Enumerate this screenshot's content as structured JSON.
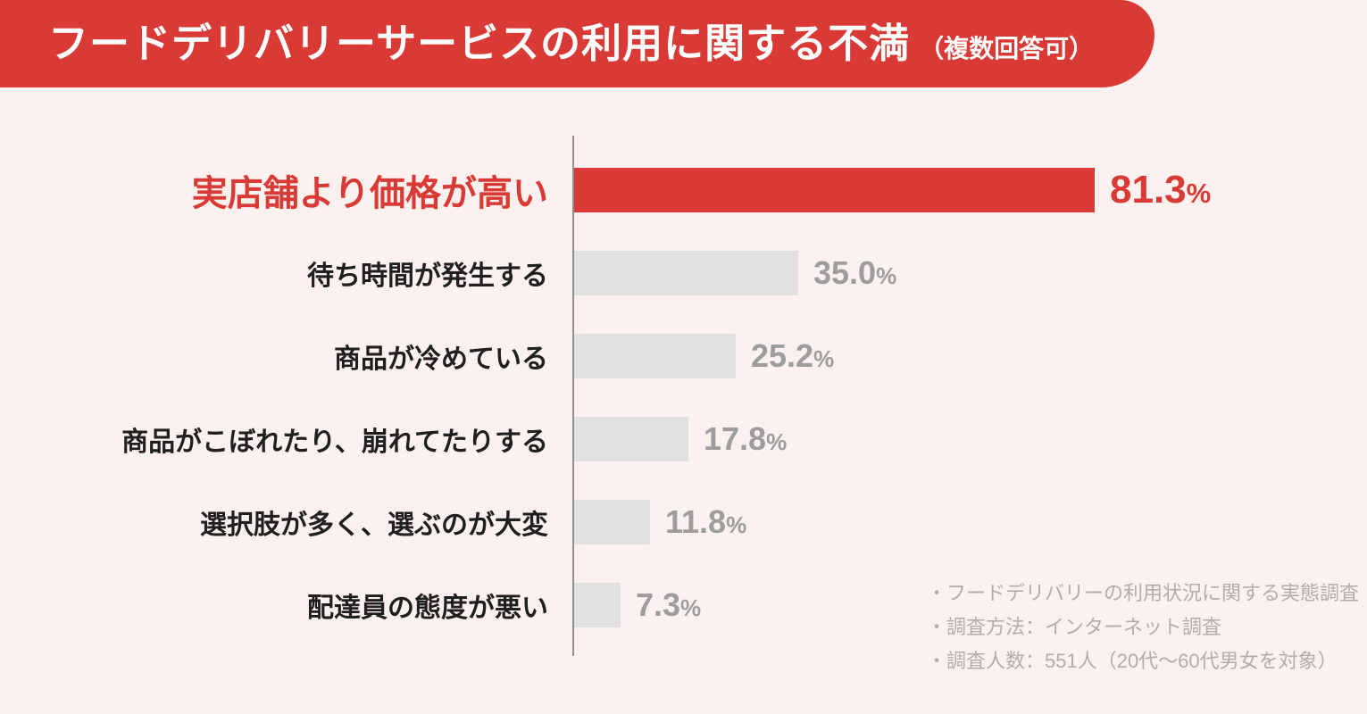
{
  "header": {
    "title": "フードデリバリーサービスの利用に関する不満",
    "note": "（複数回答可）"
  },
  "chart_data": {
    "type": "bar",
    "orientation": "horizontal",
    "title": "フードデリバリーサービスの利用に関する不満（複数回答可）",
    "categories": [
      "実店舗より価格が高い",
      "待ち時間が発生する",
      "商品が冷めている",
      "商品がこぼれたり、崩れてたりする",
      "選択肢が多く、選ぶのが大変",
      "配達員の態度が悪い"
    ],
    "values": [
      81.3,
      35.0,
      25.2,
      17.8,
      11.8,
      7.3
    ],
    "value_labels": [
      "81.3",
      "35.0",
      "25.2",
      "17.8",
      "11.8",
      "7.3"
    ],
    "unit": "%",
    "highlight_index": 0,
    "xlim": [
      0,
      90
    ],
    "grid": false,
    "legend": false,
    "colors": {
      "highlight_bar": "#d93a35",
      "bar": "#e0e0e0",
      "highlight_label": "#d93a35",
      "category_label": "#1f1f1f",
      "value_label": "#9d9d9d",
      "background": "#fcf1ef",
      "banner": "#d93a35",
      "axis": "#8e8e8e"
    }
  },
  "footnotes": [
    "・フードデリバリーの利用状況に関する実態調査",
    "・調査方法：インターネット調査",
    "・調査人数：551人（20代～60代男女を対象）"
  ]
}
